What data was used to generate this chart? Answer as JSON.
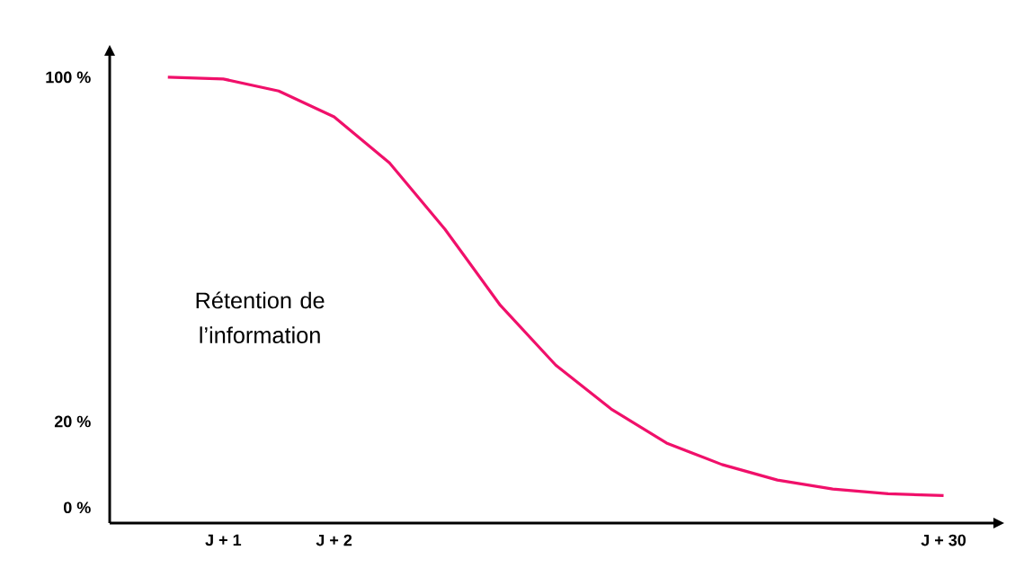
{
  "chart_data": {
    "type": "line",
    "annotations": [
      "Rétention de l’information"
    ],
    "categories": [
      null,
      "J + 1",
      null,
      "J + 2",
      null,
      null,
      null,
      null,
      null,
      null,
      null,
      null,
      null,
      null,
      "J + 30"
    ],
    "values": [
      100,
      99.6,
      96.8,
      90.8,
      80.1,
      64.7,
      47.0,
      33.1,
      22.9,
      15.0,
      10.0,
      6.4,
      4.3,
      3.2,
      2.8
    ],
    "color": "#f0106a",
    "ylim": [
      -3.6,
      105
    ],
    "yticks": [
      {
        "value": 100,
        "label": "100 %"
      },
      {
        "value": 20,
        "label": "20 %"
      },
      {
        "value": 0,
        "label": "0 %"
      }
    ],
    "marker": "none",
    "line_style": "solid"
  }
}
